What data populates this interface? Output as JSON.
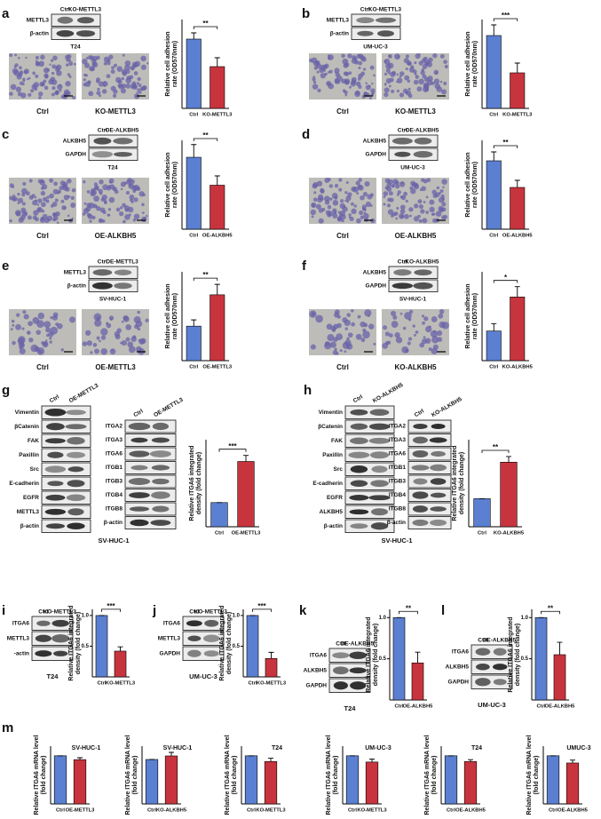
{
  "figure": {
    "panels": [
      {
        "letter": "a",
        "blot": {
          "header": [
            "Ctrl",
            "KO-METTL3"
          ],
          "rows": [
            "METTL3",
            "β-actin"
          ]
        },
        "cell_line": "T24",
        "images": [
          "Ctrl",
          "KO-METTL3"
        ]
      },
      {
        "letter": "b",
        "blot": {
          "header": [
            "Ctrl",
            "KO-METTL3"
          ],
          "rows": [
            "METTL3",
            "β-actin"
          ]
        },
        "cell_line": "UM-UC-3",
        "images": [
          "Ctrl",
          "KO-METTL3"
        ]
      },
      {
        "letter": "c",
        "blot": {
          "header": [
            "Ctrl",
            "OE-ALKBH5"
          ],
          "rows": [
            "ALKBH5",
            "GAPDH"
          ]
        },
        "cell_line": "T24",
        "images": [
          "Ctrl",
          "OE-ALKBH5"
        ]
      },
      {
        "letter": "d",
        "blot": {
          "header": [
            "Ctrl",
            "OE-ALKBH5"
          ],
          "rows": [
            "ALKBH5",
            "GAPDH"
          ]
        },
        "cell_line": "UM-UC-3",
        "images": [
          "Ctrl",
          "OE-ALKBH5"
        ]
      },
      {
        "letter": "e",
        "blot": {
          "header": [
            "Ctrl",
            "OE-METTL3"
          ],
          "rows": [
            "METTL3",
            "β-actin"
          ]
        },
        "cell_line": "SV-HUC-1",
        "images": [
          "Ctrl",
          "OE-METTL3"
        ]
      },
      {
        "letter": "f",
        "blot": {
          "header": [
            "Ctrl",
            "KO-ALKBH5"
          ],
          "rows": [
            "ALKBH5",
            "GAPDH"
          ]
        },
        "cell_line": "SV-HUC-1",
        "images": [
          "Ctrl",
          "KO-ALKBH5"
        ]
      },
      {
        "letter": "g",
        "blots": [
          {
            "header": [
              "Ctrl",
              "OE-METTL3"
            ],
            "rows": [
              "Vimentin",
              "βCatenin",
              "FAK",
              "Paxillin",
              "Src",
              "E-cadherin",
              "EGFR",
              "METTL3",
              "β-actin"
            ]
          },
          {
            "header": [
              "Ctrl",
              "OE-METTL3"
            ],
            "rows": [
              "ITGA2",
              "ITGA3",
              "ITGA6",
              "ITGB1",
              "ITGB3",
              "ITGB4",
              "ITGB8",
              "β-actin"
            ]
          }
        ],
        "cell_line": "SV-HUC-1"
      },
      {
        "letter": "h",
        "blots": [
          {
            "header": [
              "Ctrl",
              "KO-ALKBH5"
            ],
            "rows": [
              "Vimentin",
              "βCatenin",
              "FAK",
              "Paxillin",
              "Src",
              "E-cadherin",
              "EGFR",
              "ALKBH5",
              "β-actin"
            ]
          },
          {
            "header": [
              "Ctrl",
              "KO-ALKBH5"
            ],
            "rows": [
              "ITGA2",
              "ITGA3",
              "ITGA6",
              "ITGB1",
              "ITGB3",
              "ITGB4",
              "ITGB8",
              "β-actin"
            ]
          }
        ],
        "cell_line": "SV-HUC-1"
      },
      {
        "letter": "i",
        "blot": {
          "header": [
            "Ctrl",
            "KO-METTL3"
          ],
          "rows": [
            "ITGA6",
            "METTL3",
            "-actin"
          ]
        },
        "cell_line": "T24"
      },
      {
        "letter": "j",
        "blot": {
          "header": [
            "Ctrl",
            "KO-METTL3"
          ],
          "rows": [
            "ITGA6",
            "METTL3",
            "GAPDH"
          ]
        },
        "cell_line": "UM-UC-3"
      },
      {
        "letter": "k",
        "blot": {
          "header": [
            "Ctrl",
            "OE-ALKBH5"
          ],
          "rows": [
            "ITGA6",
            "ALKBH5",
            "GAPDH"
          ]
        },
        "cell_line": "T24"
      },
      {
        "letter": "l",
        "blot": {
          "header": [
            "Ctrl",
            "OE-ALKBH5"
          ],
          "rows": [
            "ITGA6",
            "ALKBH5",
            "GAPDH"
          ]
        },
        "cell_line": "UM-UC-3"
      },
      {
        "letter": "m"
      }
    ]
  },
  "chart_data": [
    {
      "type": "bar",
      "ylabel": [
        "Relative cell adhesion",
        "rate (OD570nm)"
      ],
      "categories": [
        "Ctrl",
        "KO-METTL3"
      ],
      "values": [
        0.78,
        0.47
      ],
      "errors": [
        0.07,
        0.1
      ],
      "colors": [
        "#5b7fd1",
        "#c8343d"
      ],
      "ylim": [
        0,
        1
      ],
      "significance": "**"
    },
    {
      "type": "bar",
      "ylabel": [
        "Relative cell adhesion",
        "rate (OD570nm)"
      ],
      "categories": [
        "Ctrl",
        "KO-METTL3"
      ],
      "values": [
        0.82,
        0.4
      ],
      "errors": [
        0.12,
        0.11
      ],
      "colors": [
        "#5b7fd1",
        "#c8343d"
      ],
      "ylim": [
        0,
        1
      ],
      "significance": "***"
    },
    {
      "type": "bar",
      "ylabel": [
        "Relative cell adhesion",
        "rate (OD570nm)"
      ],
      "categories": [
        "Ctrl",
        "OE-ALKBH5"
      ],
      "values": [
        0.85,
        0.52
      ],
      "errors": [
        0.15,
        0.11
      ],
      "colors": [
        "#5b7fd1",
        "#c8343d"
      ],
      "ylim": [
        0,
        1.05
      ],
      "significance": "**"
    },
    {
      "type": "bar",
      "ylabel": [
        "Relative cell adhesion",
        "rate (OD570nm)"
      ],
      "categories": [
        "Ctrl",
        "OE-ALKBH5"
      ],
      "values": [
        0.77,
        0.47
      ],
      "errors": [
        0.1,
        0.08
      ],
      "colors": [
        "#5b7fd1",
        "#c8343d"
      ],
      "ylim": [
        0,
        1
      ],
      "significance": "**"
    },
    {
      "type": "bar",
      "ylabel": [
        "Relative cell adhesion",
        "rate (OD570nm)"
      ],
      "categories": [
        "Ctrl",
        "OE-METTL3"
      ],
      "values": [
        0.33,
        0.63
      ],
      "errors": [
        0.06,
        0.1
      ],
      "colors": [
        "#5b7fd1",
        "#c8343d"
      ],
      "ylim": [
        0,
        0.85
      ],
      "significance": "**"
    },
    {
      "type": "bar",
      "ylabel": [
        "Relative cell adhesion",
        "rate (OD570nm)"
      ],
      "categories": [
        "Ctrl",
        "KO-ALKBH5"
      ],
      "values": [
        0.2,
        0.43
      ],
      "errors": [
        0.05,
        0.07
      ],
      "colors": [
        "#5b7fd1",
        "#c8343d"
      ],
      "ylim": [
        0,
        0.6
      ],
      "significance": "*"
    },
    {
      "type": "bar",
      "ylabel": [
        "Relative ITGA6 integrated",
        "density (fold change)"
      ],
      "categories": [
        "Ctrl",
        "OE-METTL3"
      ],
      "values": [
        1,
        2.7
      ],
      "errors": [
        0,
        0.25
      ],
      "colors": [
        "#5b7fd1",
        "#c8343d"
      ],
      "ylim": [
        0,
        3.6
      ],
      "significance": "***"
    },
    {
      "type": "bar",
      "ylabel": [
        "Relative ITGA6 integrated",
        "density (fold change)"
      ],
      "categories": [
        "Ctrl",
        "KO-ALKBH5"
      ],
      "values": [
        1,
        2.3
      ],
      "errors": [
        0,
        0.2
      ],
      "colors": [
        "#5b7fd1",
        "#c8343d"
      ],
      "ylim": [
        0,
        3.1
      ],
      "significance": "**"
    },
    {
      "type": "bar",
      "ylabel": [
        "Relative ITGA6 integrated",
        "density (fold change)"
      ],
      "categories": [
        "Ctrl",
        "KO-METTL3"
      ],
      "values": [
        1,
        0.42
      ],
      "errors": [
        0,
        0.07
      ],
      "colors": [
        "#5b7fd1",
        "#c8343d"
      ],
      "ylim": [
        0,
        1.1
      ],
      "yticks": [
        0.5,
        {
          "value": 1,
          "label": "1.0"
        }
      ],
      "significance": "***"
    },
    {
      "type": "bar",
      "ylabel": [
        "Relative ITGA6 integrated",
        "density (fold change)"
      ],
      "categories": [
        "Ctrl",
        "KO-METTL3"
      ],
      "values": [
        1,
        0.3
      ],
      "errors": [
        0,
        0.1
      ],
      "colors": [
        "#5b7fd1",
        "#c8343d"
      ],
      "ylim": [
        0,
        1.1
      ],
      "yticks": [
        0.5,
        {
          "value": 1,
          "label": "1.0"
        }
      ],
      "significance": "***"
    },
    {
      "type": "bar",
      "ylabel": [
        "Relative ITGA6 integrated",
        "density (fold change)"
      ],
      "categories": [
        "Ctrl",
        "OE-ALKBH5"
      ],
      "values": [
        1,
        0.45
      ],
      "errors": [
        0,
        0.13
      ],
      "colors": [
        "#5b7fd1",
        "#c8343d"
      ],
      "ylim": [
        0,
        1.1
      ],
      "yticks": [
        0.5,
        {
          "value": 1,
          "label": "1.0"
        }
      ],
      "significance": "**"
    },
    {
      "type": "bar",
      "ylabel": [
        "Relative ITGA6 integrated",
        "density (fold change)"
      ],
      "categories": [
        "Ctrl",
        "OE-ALKBH5"
      ],
      "values": [
        1,
        0.55
      ],
      "errors": [
        0,
        0.15
      ],
      "colors": [
        "#5b7fd1",
        "#c8343d"
      ],
      "ylim": [
        0,
        1.1
      ],
      "yticks": [
        0.5,
        {
          "value": 1,
          "label": "1.0"
        }
      ],
      "significance": "**"
    },
    {
      "type": "bar",
      "title": "SV-HUC-1",
      "ylabel": [
        "Relative ITGA6 mRNA level",
        "(fold change)"
      ],
      "categories": [
        "Ctrl",
        "OE-METTL3"
      ],
      "values": [
        1,
        0.92
      ],
      "errors": [
        0,
        0.04
      ],
      "colors": [
        "#5b7fd1",
        "#c8343d"
      ],
      "ylim": [
        0,
        1.2
      ]
    },
    {
      "type": "bar",
      "title": "SV-HUC-1",
      "ylabel": [
        "Relative ITGA6 mRNA level",
        "(fold change)"
      ],
      "categories": [
        "Ctrl",
        "KO-ALKBH5"
      ],
      "values": [
        1,
        1.08
      ],
      "errors": [
        0,
        0.08
      ],
      "colors": [
        "#5b7fd1",
        "#c8343d"
      ],
      "ylim": [
        0,
        1.3
      ]
    },
    {
      "type": "bar",
      "title": "T24",
      "ylabel": [
        "Relative ITGA6 mRNA level",
        "(fold change)"
      ],
      "categories": [
        "Ctrl",
        "KO-METTL3"
      ],
      "values": [
        1,
        0.88
      ],
      "errors": [
        0,
        0.07
      ],
      "colors": [
        "#5b7fd1",
        "#c8343d"
      ],
      "ylim": [
        0,
        1.2
      ]
    },
    {
      "type": "bar",
      "title": "UM-UC-3",
      "ylabel": [
        "Relative ITGA6 mRNA level",
        "(fold change)"
      ],
      "categories": [
        "Ctrl",
        "KO-METTL3"
      ],
      "values": [
        1,
        0.87
      ],
      "errors": [
        0,
        0.06
      ],
      "colors": [
        "#5b7fd1",
        "#c8343d"
      ],
      "ylim": [
        0,
        1.2
      ]
    },
    {
      "type": "bar",
      "title": "T24",
      "ylabel": [
        "Relative ITGA6 mRNA level",
        "(fold change)"
      ],
      "categories": [
        "Ctrl",
        "OE-ALKBH5"
      ],
      "values": [
        1,
        0.88
      ],
      "errors": [
        0,
        0.04
      ],
      "colors": [
        "#5b7fd1",
        "#c8343d"
      ],
      "ylim": [
        0,
        1.2
      ]
    },
    {
      "type": "bar",
      "title": "UMUC-3",
      "ylabel": [
        "Relative ITGA6 mRNA level",
        "(fold change)"
      ],
      "categories": [
        "Ctrl",
        "OE-ALKBH5"
      ],
      "values": [
        1,
        0.85
      ],
      "errors": [
        0,
        0.06
      ],
      "colors": [
        "#5b7fd1",
        "#c8343d"
      ],
      "ylim": [
        0,
        1.2
      ]
    }
  ]
}
